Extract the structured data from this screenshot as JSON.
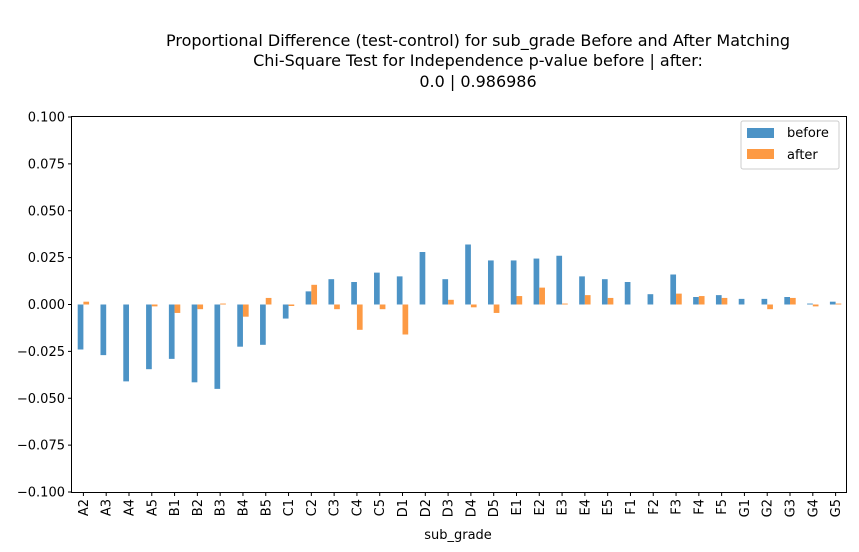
{
  "chart_data": {
    "type": "bar",
    "title": [
      "Proportional Difference (test-control) for sub_grade Before and After Matching",
      "Chi-Square Test for Independence p-value before | after:",
      "0.0 | 0.986986"
    ],
    "xlabel": "sub_grade",
    "ylabel": "",
    "ylim": [
      -0.1,
      0.1
    ],
    "yticks": [
      -0.1,
      -0.075,
      -0.05,
      -0.025,
      0.0,
      0.025,
      0.05,
      0.075,
      0.1
    ],
    "ytick_labels": [
      "−0.100",
      "−0.075",
      "−0.050",
      "−0.025",
      "0.000",
      "0.025",
      "0.050",
      "0.075",
      "0.100"
    ],
    "grid": false,
    "legend_position": "top-right",
    "categories": [
      "A2",
      "A3",
      "A4",
      "A5",
      "B1",
      "B2",
      "B3",
      "B4",
      "B5",
      "C1",
      "C2",
      "C3",
      "C4",
      "C5",
      "D1",
      "D2",
      "D3",
      "D4",
      "D5",
      "E1",
      "E2",
      "E3",
      "E4",
      "E5",
      "F1",
      "F2",
      "F3",
      "F4",
      "F5",
      "G1",
      "G2",
      "G3",
      "G4",
      "G5"
    ],
    "series": [
      {
        "name": "before",
        "color": "#4c93c6",
        "values": [
          -0.024,
          -0.027,
          -0.041,
          -0.0345,
          -0.029,
          -0.0415,
          -0.045,
          -0.0225,
          -0.0215,
          -0.0075,
          0.007,
          0.0135,
          0.012,
          0.017,
          0.015,
          0.028,
          0.0135,
          0.032,
          0.0235,
          0.0235,
          0.0245,
          0.026,
          0.015,
          0.0135,
          0.012,
          0.0055,
          0.016,
          0.004,
          0.005,
          0.003,
          0.003,
          0.004,
          0.0005,
          0.0015
        ]
      },
      {
        "name": "after",
        "color": "#fd9a44",
        "values": [
          0.0015,
          0.0,
          0.0,
          -0.001,
          -0.0045,
          -0.0025,
          0.0005,
          -0.0065,
          0.0035,
          -0.0008,
          0.0105,
          -0.0025,
          -0.0135,
          -0.0025,
          -0.016,
          0.0,
          0.0025,
          -0.0015,
          -0.0045,
          0.0045,
          0.009,
          0.0005,
          0.005,
          0.0035,
          0.0,
          0.0,
          0.0058,
          0.0045,
          0.0035,
          0.0,
          -0.0025,
          0.0035,
          -0.001,
          0.0005
        ]
      }
    ]
  }
}
